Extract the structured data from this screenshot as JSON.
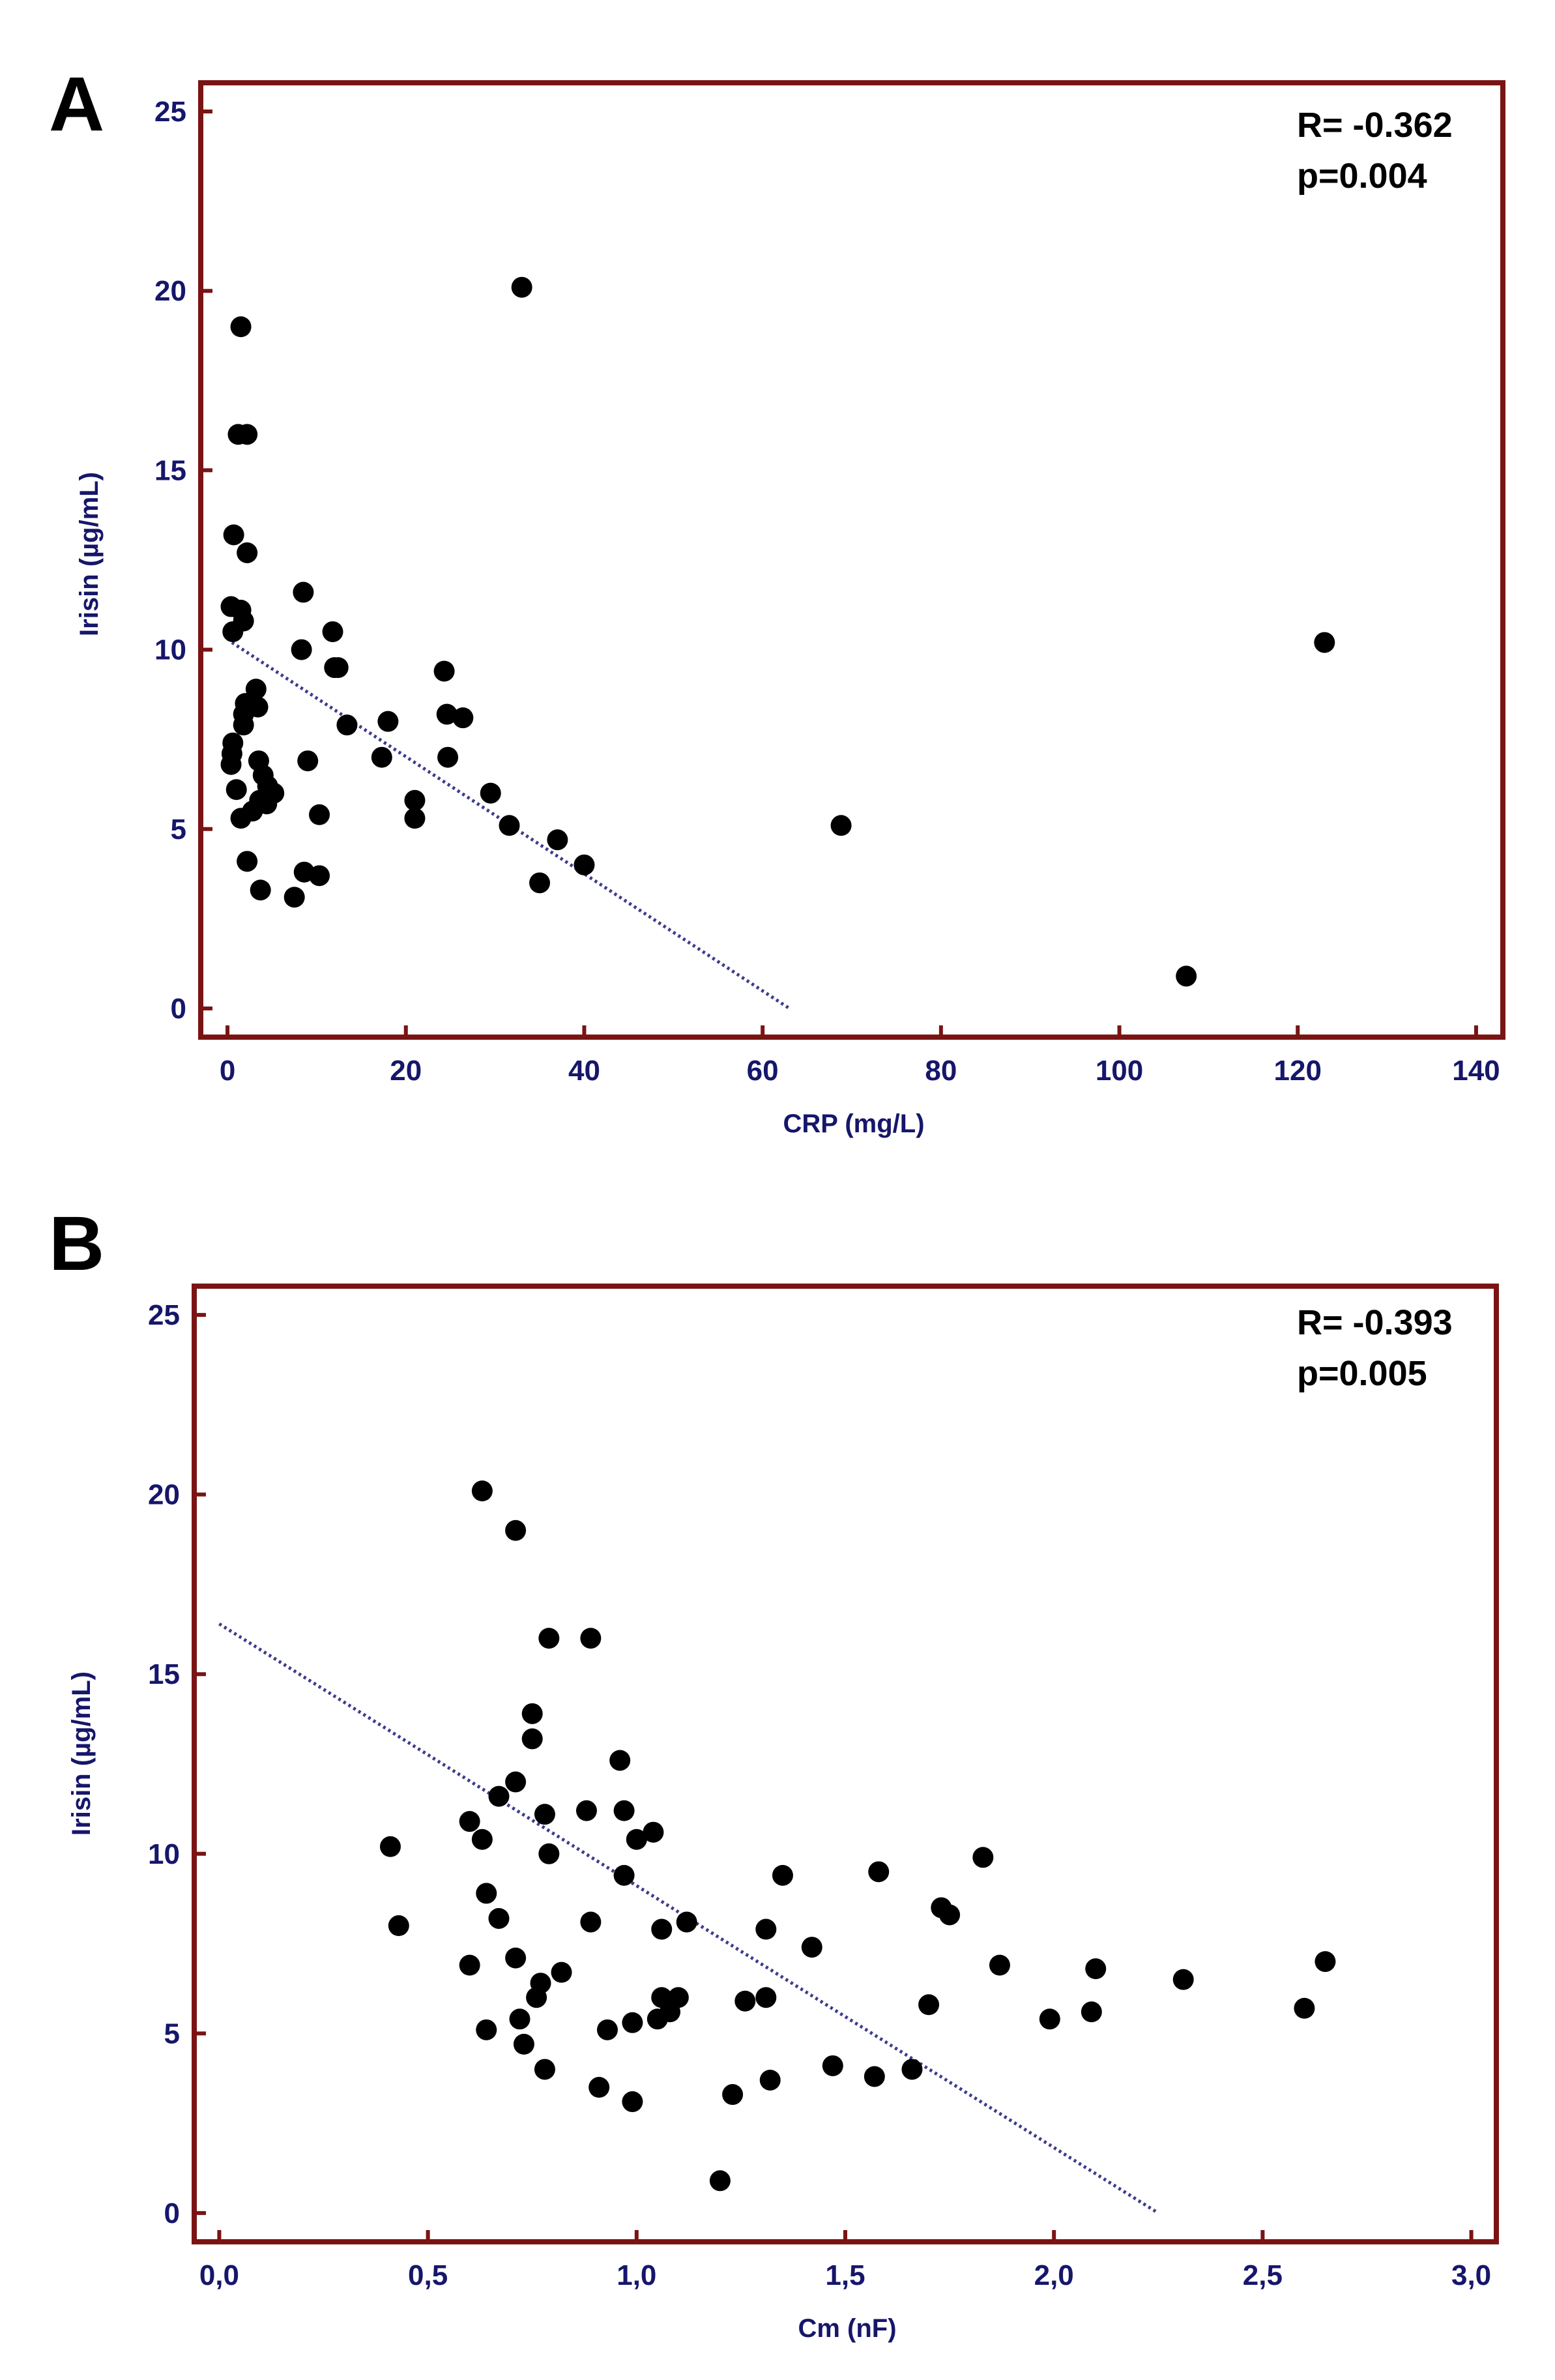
{
  "colors": {
    "frame": "#7a1414",
    "tick_text": "#16166b",
    "trend": "#3c3c8c",
    "point": "#000000"
  },
  "chart_data": [
    {
      "panel": "A",
      "type": "scatter",
      "xlabel": "CRP (mg/L)",
      "ylabel": "Irisin (µg/mL)",
      "xlim": [
        -3,
        143
      ],
      "ylim": [
        -0.8,
        25.8
      ],
      "xticks": [
        0,
        20,
        40,
        60,
        80,
        100,
        120,
        140
      ],
      "xtick_labels": [
        "0",
        "20",
        "40",
        "60",
        "80",
        "100",
        "120",
        "140"
      ],
      "yticks": [
        0,
        5,
        10,
        15,
        20,
        25
      ],
      "ytick_labels": [
        "0",
        "5",
        "10",
        "15",
        "20",
        "25"
      ],
      "stats": [
        "R= -0.362",
        "p=0.004"
      ],
      "trendline": {
        "x": [
          0.5,
          63
        ],
        "y": [
          10.2,
          0
        ]
      },
      "points": [
        [
          1.5,
          19.0
        ],
        [
          1.2,
          16.0
        ],
        [
          2.2,
          16.0
        ],
        [
          0.7,
          13.2
        ],
        [
          2.2,
          12.7
        ],
        [
          0.4,
          11.2
        ],
        [
          1.5,
          11.1
        ],
        [
          1.8,
          10.8
        ],
        [
          0.6,
          10.5
        ],
        [
          3.2,
          8.9
        ],
        [
          2.0,
          8.5
        ],
        [
          3.4,
          8.4
        ],
        [
          1.8,
          8.2
        ],
        [
          1.8,
          7.9
        ],
        [
          0.6,
          7.4
        ],
        [
          0.5,
          7.1
        ],
        [
          0.4,
          6.8
        ],
        [
          3.5,
          6.9
        ],
        [
          4.0,
          6.5
        ],
        [
          1.0,
          6.1
        ],
        [
          4.5,
          6.2
        ],
        [
          5.2,
          6.0
        ],
        [
          3.6,
          5.8
        ],
        [
          4.4,
          5.7
        ],
        [
          2.8,
          5.5
        ],
        [
          1.5,
          5.3
        ],
        [
          2.2,
          4.1
        ],
        [
          3.7,
          3.3
        ],
        [
          8.5,
          11.6
        ],
        [
          11.8,
          10.5
        ],
        [
          8.3,
          10.0
        ],
        [
          12.0,
          9.5
        ],
        [
          12.4,
          9.5
        ],
        [
          13.4,
          7.9
        ],
        [
          9.0,
          6.9
        ],
        [
          10.3,
          5.4
        ],
        [
          8.6,
          3.8
        ],
        [
          10.3,
          3.7
        ],
        [
          7.5,
          3.1
        ],
        [
          18.0,
          8.0
        ],
        [
          17.3,
          7.0
        ],
        [
          21.0,
          5.8
        ],
        [
          21.0,
          5.3
        ],
        [
          24.3,
          9.4
        ],
        [
          24.6,
          8.2
        ],
        [
          26.4,
          8.1
        ],
        [
          24.7,
          7.0
        ],
        [
          29.5,
          6.0
        ],
        [
          31.6,
          5.1
        ],
        [
          37.0,
          4.7
        ],
        [
          40.0,
          4.0
        ],
        [
          35.0,
          3.5
        ],
        [
          33.0,
          20.1
        ],
        [
          68.8,
          5.1
        ],
        [
          107.5,
          0.9
        ],
        [
          123.0,
          10.2
        ]
      ]
    },
    {
      "panel": "B",
      "type": "scatter",
      "xlabel": "Cm (nF)",
      "ylabel": "Irisin (µg/mL)",
      "xlim": [
        -0.06,
        3.06
      ],
      "ylim": [
        -0.8,
        25.8
      ],
      "xticks": [
        0,
        0.5,
        1.0,
        1.5,
        2.0,
        2.5,
        3.0
      ],
      "xtick_labels": [
        "0,0",
        "0,5",
        "1,0",
        "1,5",
        "2,0",
        "2,5",
        "3,0"
      ],
      "yticks": [
        0,
        5,
        10,
        15,
        20,
        25
      ],
      "ytick_labels": [
        "0",
        "5",
        "10",
        "15",
        "20",
        "25"
      ],
      "stats": [
        "R= -0.393",
        "p=0.005"
      ],
      "trendline": {
        "x": [
          0.0,
          2.25
        ],
        "y": [
          16.4,
          0
        ]
      },
      "points": [
        [
          0.63,
          20.1
        ],
        [
          0.71,
          19.0
        ],
        [
          0.79,
          16.0
        ],
        [
          0.89,
          16.0
        ],
        [
          0.75,
          13.9
        ],
        [
          0.75,
          13.2
        ],
        [
          0.96,
          12.6
        ],
        [
          0.71,
          12.0
        ],
        [
          0.67,
          11.6
        ],
        [
          0.78,
          11.1
        ],
        [
          0.88,
          11.2
        ],
        [
          0.97,
          11.2
        ],
        [
          0.6,
          10.9
        ],
        [
          0.63,
          10.4
        ],
        [
          1.0,
          10.4
        ],
        [
          1.04,
          10.6
        ],
        [
          0.41,
          10.2
        ],
        [
          0.79,
          10.0
        ],
        [
          0.97,
          9.4
        ],
        [
          0.64,
          8.9
        ],
        [
          0.67,
          8.2
        ],
        [
          0.89,
          8.1
        ],
        [
          1.06,
          7.9
        ],
        [
          1.12,
          8.1
        ],
        [
          0.43,
          8.0
        ],
        [
          0.71,
          7.1
        ],
        [
          0.6,
          6.9
        ],
        [
          0.82,
          6.7
        ],
        [
          0.77,
          6.4
        ],
        [
          0.76,
          6.0
        ],
        [
          1.06,
          6.0
        ],
        [
          1.1,
          6.0
        ],
        [
          1.08,
          5.6
        ],
        [
          1.05,
          5.4
        ],
        [
          0.99,
          5.3
        ],
        [
          0.93,
          5.1
        ],
        [
          0.72,
          5.4
        ],
        [
          0.64,
          5.1
        ],
        [
          0.73,
          4.7
        ],
        [
          0.78,
          4.0
        ],
        [
          0.91,
          3.5
        ],
        [
          0.99,
          3.1
        ],
        [
          1.2,
          0.9
        ],
        [
          1.23,
          3.3
        ],
        [
          1.26,
          5.9
        ],
        [
          1.31,
          6.0
        ],
        [
          1.31,
          7.9
        ],
        [
          1.35,
          9.4
        ],
        [
          1.32,
          3.7
        ],
        [
          1.42,
          7.4
        ],
        [
          1.47,
          4.1
        ],
        [
          1.57,
          3.8
        ],
        [
          1.58,
          9.5
        ],
        [
          1.66,
          4.0
        ],
        [
          1.7,
          5.8
        ],
        [
          1.73,
          8.5
        ],
        [
          1.75,
          8.3
        ],
        [
          1.83,
          9.9
        ],
        [
          1.87,
          6.9
        ],
        [
          1.99,
          5.4
        ],
        [
          2.09,
          5.6
        ],
        [
          2.1,
          6.8
        ],
        [
          2.31,
          6.5
        ],
        [
          2.6,
          5.7
        ],
        [
          2.65,
          7.0
        ]
      ]
    }
  ]
}
